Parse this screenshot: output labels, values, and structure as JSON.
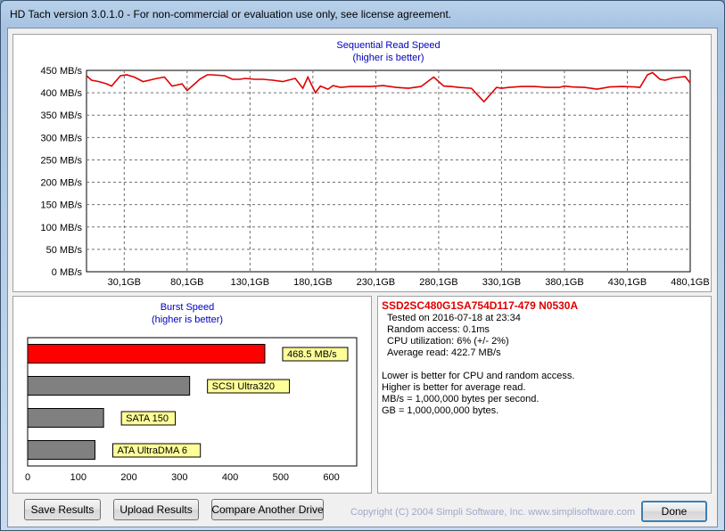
{
  "window": {
    "title": "HD Tach version 3.0.1.0  - For non-commercial or evaluation use only, see license agreement."
  },
  "colors": {
    "read_line": "#e00000",
    "burst_bar": "#ff0000",
    "ref_bar": "#808080",
    "label_bg": "#ffff99",
    "chart_title": "#0000c0"
  },
  "chart_data": [
    {
      "type": "line",
      "title": "Sequential Read Speed",
      "subtitle": "(higher is better)",
      "yunit": "MB/s",
      "ylim": [
        0,
        450
      ],
      "xlim": [
        0,
        480
      ],
      "y_ticks": [
        0,
        50,
        100,
        150,
        200,
        250,
        300,
        350,
        400,
        450
      ],
      "y_tick_labels": [
        "0 MB/s",
        "50 MB/s",
        "100 MB/s",
        "150 MB/s",
        "200 MB/s",
        "250 MB/s",
        "300 MB/s",
        "350 MB/s",
        "400 MB/s",
        "450 MB/s"
      ],
      "x_ticks": [
        30,
        80,
        130,
        180,
        230,
        280,
        330,
        380,
        430,
        480
      ],
      "x_tick_labels": [
        "30,1GB",
        "80,1GB",
        "130,1GB",
        "180,1GB",
        "230,1GB",
        "280,1GB",
        "330,1GB",
        "380,1GB",
        "430,1GB",
        "480,1GB"
      ],
      "grid": true,
      "series": [
        {
          "x": [
            0,
            4,
            10,
            16,
            20,
            27,
            32,
            38,
            45,
            50,
            56,
            62,
            68,
            76,
            80,
            86,
            90,
            96,
            100,
            110,
            116,
            122,
            126,
            134,
            140,
            148,
            156,
            166,
            172,
            176,
            182,
            186,
            192,
            196,
            202,
            210,
            216,
            226,
            236,
            246,
            256,
            266,
            276,
            284,
            290,
            296,
            306,
            316,
            326,
            330,
            336,
            346,
            356,
            366,
            376,
            380,
            386,
            396,
            406,
            416,
            426,
            436,
            440,
            446,
            450,
            456,
            460,
            466,
            476,
            480
          ],
          "y": [
            438,
            428,
            425,
            420,
            415,
            438,
            440,
            435,
            425,
            428,
            432,
            435,
            415,
            420,
            405,
            420,
            430,
            440,
            440,
            438,
            430,
            430,
            432,
            430,
            430,
            428,
            425,
            432,
            410,
            435,
            400,
            415,
            408,
            416,
            412,
            414,
            414,
            414,
            416,
            412,
            410,
            414,
            435,
            415,
            414,
            412,
            410,
            380,
            412,
            410,
            412,
            414,
            414,
            412,
            412,
            415,
            413,
            412,
            408,
            413,
            414,
            413,
            412,
            440,
            445,
            430,
            428,
            433,
            436,
            422
          ]
        }
      ]
    },
    {
      "type": "bar",
      "orientation": "horizontal",
      "title": "Burst Speed",
      "subtitle": "(higher is better)",
      "xlim": [
        0,
        650
      ],
      "x_ticks": [
        0,
        100,
        200,
        300,
        400,
        500,
        600
      ],
      "categories": [
        "468.5 MB/s",
        "SCSI Ultra320",
        "SATA 150",
        "ATA UltraDMA 6"
      ],
      "values": [
        468.5,
        320,
        150,
        133
      ]
    }
  ],
  "info": {
    "drive": "SSD2SC480G1SA754D117-479 N0530A",
    "lines": [
      "Tested on 2016-07-18 at 23:34",
      "Random access: 0.1ms",
      "CPU utilization: 6% (+/- 2%)",
      "Average read: 422.7 MB/s"
    ],
    "notes": [
      "Lower is better for CPU and random access.",
      "Higher is better for average read.",
      "MB/s = 1,000,000 bytes per second.",
      "GB = 1,000,000,000 bytes."
    ]
  },
  "buttons": {
    "save": "Save Results",
    "upload": "Upload Results",
    "compare": "Compare Another Drive",
    "done": "Done"
  },
  "copyright": "Copyright (C) 2004 Simpli Software, Inc. www.simplisoftware.com"
}
